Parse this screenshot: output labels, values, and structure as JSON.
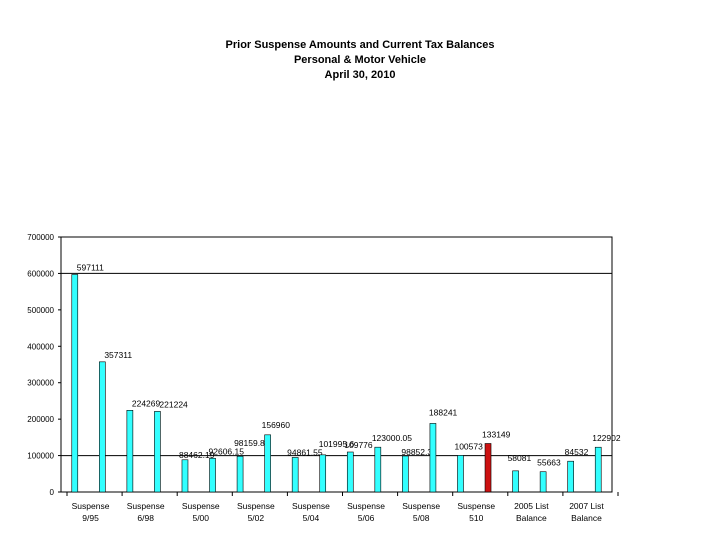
{
  "chart_data": {
    "type": "bar",
    "title": "Prior Suspense Amounts and Current Tax Balances",
    "subtitle": "Personal & Motor Vehicle",
    "date": "April 30, 2010",
    "ylim": [
      0,
      700000
    ],
    "yticks": [
      0,
      100000,
      200000,
      300000,
      400000,
      500000,
      600000,
      700000
    ],
    "ytick_labels": [
      "0",
      "100000",
      "200000",
      "300000",
      "400000",
      "500000",
      "600000",
      "700000"
    ],
    "grid_lines": [
      100000,
      600000
    ],
    "values": [
      597111,
      357311,
      224269,
      221224,
      88462.19,
      92606.15,
      98159.85,
      156960,
      94861.55,
      101995.6,
      109776,
      123000.05,
      98852.3,
      188241,
      100573,
      133149,
      58081,
      55663,
      84532,
      122902
    ],
    "data_labels": [
      "597111",
      "357311",
      "224269",
      "221224",
      "88462.19",
      "92606.15",
      "98159.85",
      "156960",
      "94861.55",
      "101995.6",
      "109776",
      "123000.05",
      "98852.3",
      "188241",
      "100573",
      "133149",
      "58081",
      "55663",
      "84532",
      "122902"
    ],
    "bar_colors": [
      "#33ffff",
      "#33ffff",
      "#33ffff",
      "#33ffff",
      "#33ffff",
      "#33ffff",
      "#33ffff",
      "#33ffff",
      "#33ffff",
      "#33ffff",
      "#33ffff",
      "#33ffff",
      "#33ffff",
      "#33ffff",
      "#33ffff",
      "#cc1111",
      "#33ffff",
      "#33ffff",
      "#33ffff",
      "#33ffff"
    ],
    "category_labels": [
      [
        "Suspense",
        "9/95"
      ],
      [
        "Suspense",
        "6/98"
      ],
      [
        "Suspense",
        "5/00"
      ],
      [
        "Suspense",
        "5/02"
      ],
      [
        "Suspense",
        "5/04"
      ],
      [
        "Suspense",
        "5/06"
      ],
      [
        "Suspense",
        "5/08"
      ],
      [
        "Suspense",
        "510"
      ],
      [
        "2005 List",
        "Balance"
      ],
      [
        "2007 List",
        "Balance"
      ]
    ]
  }
}
